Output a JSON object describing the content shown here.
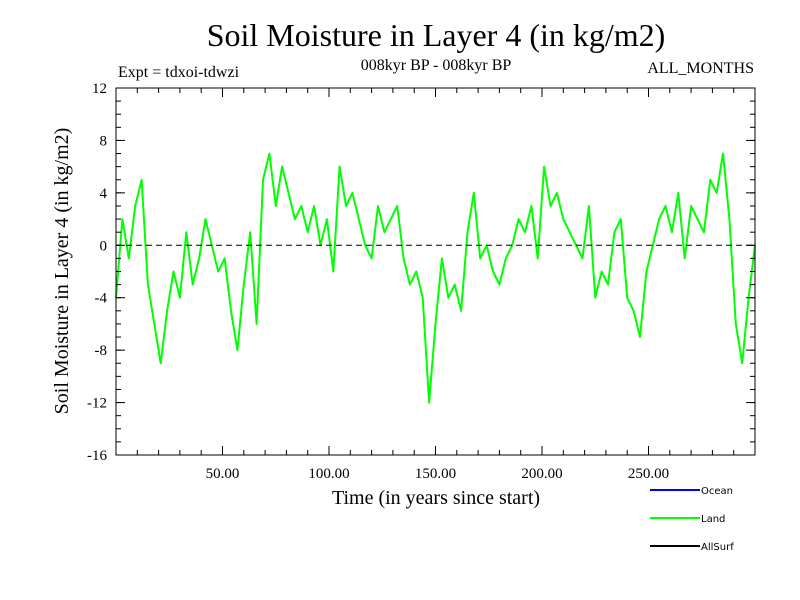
{
  "chart_data": {
    "type": "line",
    "title": "Soil Moisture in Layer 4 (in kg/m2)",
    "subtitle_left": "Expt = tdxoi-tdwzi",
    "subtitle_center": "008kyr BP - 008kyr BP",
    "subtitle_right": "ALL_MONTHS",
    "xlabel": "Time (in years since start)",
    "ylabel": "Soil Moisture in Layer 4 (in kg/m2)",
    "xlim": [
      0,
      300
    ],
    "ylim": [
      -16,
      12
    ],
    "x_ticks": [
      {
        "value": 50,
        "label": "50.00"
      },
      {
        "value": 100,
        "label": "100.00"
      },
      {
        "value": 150,
        "label": "150.00"
      },
      {
        "value": 200,
        "label": "200.00"
      },
      {
        "value": 250,
        "label": "250.00"
      }
    ],
    "y_ticks": [
      {
        "value": 12,
        "label": "12"
      },
      {
        "value": 8,
        "label": "8"
      },
      {
        "value": 4,
        "label": "4"
      },
      {
        "value": 0,
        "label": "0"
      },
      {
        "value": -4,
        "label": "-4"
      },
      {
        "value": -8,
        "label": "-8"
      },
      {
        "value": -12,
        "label": "-12"
      },
      {
        "value": -16,
        "label": "-16"
      }
    ],
    "zero_line": true,
    "legend_position": "bottom-right",
    "legend": [
      {
        "name": "Ocean",
        "color": "#0000ff"
      },
      {
        "name": "Land",
        "color": "#00ff00"
      },
      {
        "name": "AllSurf",
        "color": "#000000"
      }
    ],
    "series": [
      {
        "name": "Land",
        "color": "#00ff00",
        "x": [
          0,
          3,
          6,
          9,
          12,
          15,
          18,
          21,
          24,
          27,
          30,
          33,
          36,
          39,
          42,
          45,
          48,
          51,
          54,
          57,
          60,
          63,
          66,
          69,
          72,
          75,
          78,
          81,
          84,
          87,
          90,
          93,
          96,
          99,
          102,
          105,
          108,
          111,
          114,
          117,
          120,
          123,
          126,
          129,
          132,
          135,
          138,
          141,
          144,
          147,
          150,
          153,
          156,
          159,
          162,
          165,
          168,
          171,
          174,
          177,
          180,
          183,
          186,
          189,
          192,
          195,
          198,
          201,
          204,
          207,
          210,
          213,
          216,
          219,
          222,
          225,
          228,
          231,
          234,
          237,
          240,
          243,
          246,
          249,
          252,
          255,
          258,
          261,
          264,
          267,
          270,
          273,
          276,
          279,
          282,
          285,
          288,
          291,
          294,
          297,
          300
        ],
        "y": [
          -4,
          2,
          -1,
          3,
          5,
          -3,
          -6,
          -9,
          -5,
          -2,
          -4,
          1,
          -3,
          -1,
          2,
          0,
          -2,
          -1,
          -5,
          -8,
          -3,
          1,
          -6,
          5,
          7,
          3,
          6,
          4,
          2,
          3,
          1,
          3,
          0,
          2,
          -2,
          6,
          3,
          4,
          2,
          0,
          -1,
          3,
          1,
          2,
          3,
          -1,
          -3,
          -2,
          -4,
          -12,
          -6,
          -1,
          -4,
          -3,
          -5,
          1,
          4,
          -1,
          0,
          -2,
          -3,
          -1,
          0,
          2,
          1,
          3,
          -1,
          6,
          3,
          4,
          2,
          1,
          0,
          -1,
          3,
          -4,
          -2,
          -3,
          1,
          2,
          -4,
          -5,
          -7,
          -2,
          0,
          2,
          3,
          1,
          4,
          -1,
          3,
          2,
          1,
          5,
          4,
          7,
          2,
          -6,
          -9,
          -4,
          0
        ]
      }
    ]
  }
}
